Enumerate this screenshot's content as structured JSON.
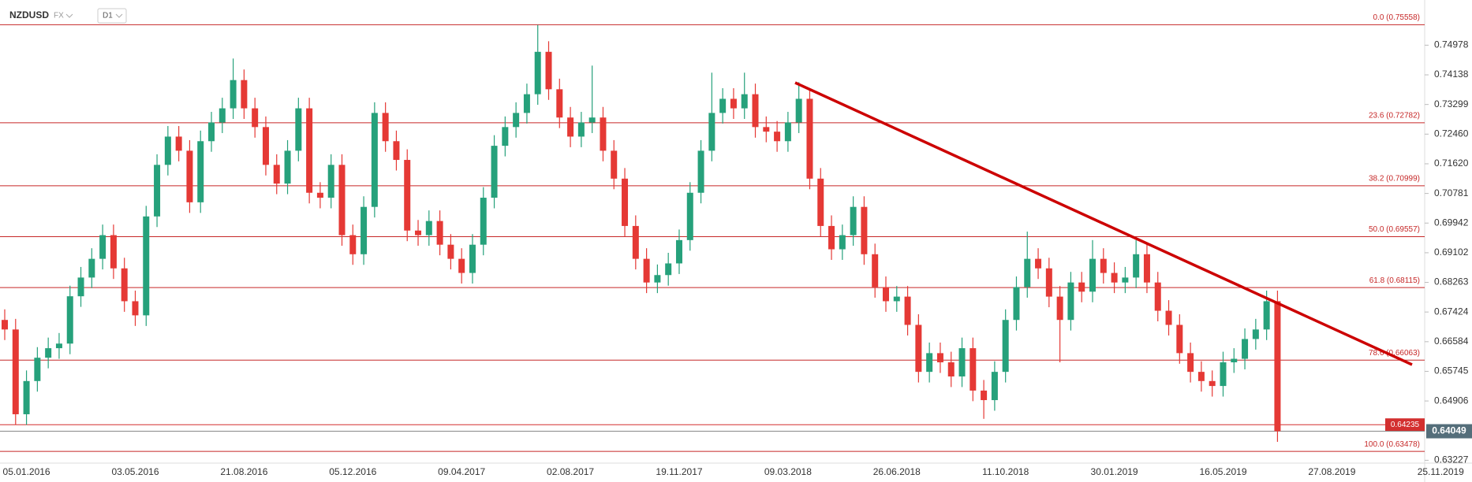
{
  "chart_data": {
    "type": "candlestick",
    "title": "NZDUSD",
    "market": "FX",
    "timeframe": "D1",
    "categories": [
      null,
      null,
      "05.01.2016",
      null,
      null,
      null,
      null,
      null,
      null,
      null,
      null,
      null,
      "03.05.2016",
      null,
      null,
      null,
      null,
      null,
      null,
      null,
      null,
      null,
      "21.08.2016",
      null,
      null,
      null,
      null,
      null,
      null,
      null,
      null,
      null,
      "05.12.2016",
      null,
      null,
      null,
      null,
      null,
      null,
      null,
      null,
      null,
      "09.04.2017",
      null,
      null,
      null,
      null,
      null,
      null,
      null,
      null,
      null,
      "02.08.2017",
      null,
      null,
      null,
      null,
      null,
      null,
      null,
      null,
      null,
      "19.11.2017",
      null,
      null,
      null,
      null,
      null,
      null,
      null,
      null,
      null,
      "09.03.2018",
      null,
      null,
      null,
      null,
      null,
      null,
      null,
      null,
      null,
      "26.06.2018",
      null,
      null,
      null,
      null,
      null,
      null,
      null,
      null,
      null,
      "11.10.2018",
      null,
      null,
      null,
      null,
      null,
      null,
      null,
      null,
      null,
      "30.01.2019",
      null,
      null,
      null,
      null,
      null,
      null,
      null,
      null,
      null,
      "16.05.2019",
      null,
      null,
      null,
      null,
      null,
      null,
      null,
      null,
      null,
      "27.08.2019",
      null,
      null,
      null,
      null,
      null,
      null,
      null,
      null,
      null,
      "25.11.2019"
    ],
    "open": [
      0.672,
      0.6693,
      0.6453,
      0.6547,
      0.6613,
      0.664,
      0.6653,
      0.6787,
      0.684,
      0.6893,
      0.696,
      0.6866,
      0.6773,
      0.6733,
      0.7013,
      0.7159,
      0.7239,
      0.7199,
      0.7053,
      0.7226,
      0.7279,
      0.7319,
      0.7399,
      0.7319,
      0.7266,
      0.7159,
      0.7106,
      0.7199,
      0.7319,
      0.708,
      0.7066,
      0.7159,
      0.696,
      0.6906,
      0.704,
      0.7306,
      0.7226,
      0.7173,
      0.6973,
      0.696,
      0.7,
      0.6933,
      0.6893,
      0.6853,
      0.6933,
      0.7066,
      0.7213,
      0.7266,
      0.7306,
      0.7359,
      0.7479,
      0.7373,
      0.7293,
      0.7239,
      0.7279,
      0.7293,
      0.7199,
      0.712,
      0.6986,
      0.6893,
      0.6826,
      0.6847,
      0.688,
      0.6946,
      0.708,
      0.7199,
      0.7306,
      0.7346,
      0.7319,
      0.7359,
      0.7266,
      0.7253,
      0.7226,
      0.7279,
      0.7346,
      0.712,
      0.6986,
      0.692,
      0.696,
      0.704,
      0.6906,
      0.6813,
      0.6773,
      0.6786,
      0.6706,
      0.6573,
      0.6626,
      0.66,
      0.656,
      0.664,
      0.652,
      0.6493,
      0.6573,
      0.672,
      0.6813,
      0.6893,
      0.6866,
      0.6786,
      0.672,
      0.6826,
      0.68,
      0.6893,
      0.6853,
      0.6826,
      0.684,
      0.6906,
      0.6826,
      0.6746,
      0.6706,
      0.6626,
      0.6573,
      0.6547,
      0.6533,
      0.66,
      0.661,
      0.6666,
      0.6693,
      0.6773,
      null,
      null,
      null,
      null,
      null,
      null,
      null,
      null,
      null,
      null,
      null,
      null,
      null,
      null,
      null
    ],
    "high": [
      0.675,
      0.6723,
      0.6577,
      0.6643,
      0.667,
      0.6683,
      0.6817,
      0.687,
      0.6923,
      0.699,
      0.699,
      0.6896,
      0.6803,
      0.7043,
      0.7189,
      0.7269,
      0.7269,
      0.7229,
      0.7256,
      0.7309,
      0.7349,
      0.746,
      0.7429,
      0.7349,
      0.7296,
      0.7189,
      0.7229,
      0.7349,
      0.7349,
      0.711,
      0.7189,
      0.7189,
      0.699,
      0.707,
      0.7336,
      0.7336,
      0.7256,
      0.7203,
      0.7003,
      0.703,
      0.703,
      0.6963,
      0.6923,
      0.6963,
      0.7096,
      0.7243,
      0.7296,
      0.7336,
      0.7389,
      0.7555,
      0.7509,
      0.7403,
      0.7323,
      0.7309,
      0.744,
      0.7323,
      0.7229,
      0.715,
      0.7016,
      0.6923,
      0.6877,
      0.691,
      0.6976,
      0.711,
      0.7229,
      0.742,
      0.7376,
      0.7376,
      0.742,
      0.7389,
      0.7296,
      0.7283,
      0.7309,
      0.7393,
      0.7376,
      0.715,
      0.7016,
      0.699,
      0.707,
      0.707,
      0.6936,
      0.6843,
      0.6816,
      0.6816,
      0.6736,
      0.6656,
      0.6656,
      0.663,
      0.667,
      0.667,
      0.655,
      0.6603,
      0.675,
      0.6843,
      0.697,
      0.6923,
      0.6896,
      0.6816,
      0.6856,
      0.6856,
      0.6946,
      0.6923,
      0.6883,
      0.687,
      0.6946,
      0.6936,
      0.6856,
      0.6776,
      0.6736,
      0.6656,
      0.6603,
      0.6577,
      0.663,
      0.664,
      0.6696,
      0.6723,
      0.6803,
      0.6803,
      null,
      null,
      null,
      null,
      null,
      null,
      null,
      null,
      null,
      null,
      null,
      null,
      null,
      null,
      null
    ],
    "low": [
      0.6663,
      0.6423,
      0.6423,
      0.6517,
      0.6583,
      0.661,
      0.6623,
      0.6757,
      0.681,
      0.6863,
      0.6836,
      0.6743,
      0.6703,
      0.6703,
      0.6983,
      0.7129,
      0.7169,
      0.7023,
      0.7023,
      0.7196,
      0.7249,
      0.7289,
      0.7289,
      0.7236,
      0.7129,
      0.7076,
      0.7076,
      0.7169,
      0.705,
      0.7036,
      0.7036,
      0.693,
      0.6876,
      0.6876,
      0.701,
      0.7196,
      0.7143,
      0.6943,
      0.693,
      0.693,
      0.6903,
      0.6863,
      0.6823,
      0.6823,
      0.6903,
      0.7036,
      0.7183,
      0.7236,
      0.7276,
      0.7329,
      0.7343,
      0.7263,
      0.7209,
      0.7209,
      0.7249,
      0.7169,
      0.709,
      0.6956,
      0.6863,
      0.6796,
      0.6796,
      0.6817,
      0.685,
      0.6916,
      0.705,
      0.7169,
      0.7276,
      0.7289,
      0.7289,
      0.7236,
      0.7223,
      0.7196,
      0.7196,
      0.7249,
      0.709,
      0.6956,
      0.689,
      0.689,
      0.693,
      0.6876,
      0.6783,
      0.6743,
      0.6743,
      0.6676,
      0.6543,
      0.6543,
      0.657,
      0.653,
      0.653,
      0.649,
      0.644,
      0.6463,
      0.6543,
      0.669,
      0.6783,
      0.6836,
      0.6756,
      0.66,
      0.669,
      0.677,
      0.677,
      0.6823,
      0.6796,
      0.6796,
      0.681,
      0.6796,
      0.6716,
      0.6676,
      0.6596,
      0.6543,
      0.6517,
      0.6503,
      0.6503,
      0.657,
      0.658,
      0.6636,
      0.6663,
      0.6375,
      null,
      null,
      null,
      null,
      null,
      null,
      null,
      null,
      null,
      null,
      null,
      null,
      null,
      null,
      null
    ],
    "close": [
      0.6693,
      0.6453,
      0.6547,
      0.6613,
      0.664,
      0.6653,
      0.6787,
      0.684,
      0.6893,
      0.696,
      0.6866,
      0.6773,
      0.6733,
      0.7013,
      0.7159,
      0.7239,
      0.7199,
      0.7053,
      0.7226,
      0.7279,
      0.7319,
      0.7399,
      0.7319,
      0.7266,
      0.7159,
      0.7106,
      0.7199,
      0.7319,
      0.708,
      0.7066,
      0.7159,
      0.696,
      0.6906,
      0.704,
      0.7306,
      0.7226,
      0.7173,
      0.6973,
      0.696,
      0.7,
      0.6933,
      0.6893,
      0.6853,
      0.6933,
      0.7066,
      0.7213,
      0.7266,
      0.7306,
      0.7359,
      0.7479,
      0.7373,
      0.7293,
      0.7239,
      0.7279,
      0.7293,
      0.7199,
      0.712,
      0.6986,
      0.6893,
      0.6826,
      0.6847,
      0.688,
      0.6946,
      0.708,
      0.7199,
      0.7306,
      0.7346,
      0.7319,
      0.7359,
      0.7266,
      0.7253,
      0.7226,
      0.7279,
      0.7346,
      0.712,
      0.6986,
      0.692,
      0.696,
      0.704,
      0.6906,
      0.6813,
      0.6773,
      0.6786,
      0.6706,
      0.6573,
      0.6626,
      0.66,
      0.656,
      0.664,
      0.652,
      0.6493,
      0.6573,
      0.672,
      0.6813,
      0.6893,
      0.6866,
      0.6786,
      0.672,
      0.6826,
      0.68,
      0.6893,
      0.6853,
      0.6826,
      0.684,
      0.6906,
      0.6826,
      0.6746,
      0.6706,
      0.6626,
      0.6573,
      0.6547,
      0.6533,
      0.66,
      0.661,
      0.6666,
      0.6693,
      0.6773,
      0.6405,
      null,
      null,
      null,
      null,
      null,
      null,
      null,
      null,
      null,
      null,
      null,
      null,
      null,
      null,
      null
    ],
    "up_color": "#26a17b",
    "down_color": "#e53935",
    "ylim": [
      0.63147,
      0.76257
    ],
    "yticks": [
      0.74978,
      0.74138,
      0.73299,
      {
        "value": 0.7246,
        "label": "0.72460"
      },
      {
        "value": 0.7162,
        "label": "0.71620"
      },
      0.70781,
      0.69942,
      0.69102,
      0.68263,
      0.67424,
      0.66584,
      0.65745,
      0.64906,
      0.63227
    ],
    "fib_levels": [
      {
        "value": 0.75558,
        "label": "0.0 (0.75558)"
      },
      {
        "value": 0.72782,
        "label": "23.6 (0.72782)"
      },
      {
        "value": 0.70999,
        "label": "38.2 (0.70999)"
      },
      {
        "value": 0.69557,
        "label": "50.0 (0.69557)"
      },
      {
        "value": 0.68115,
        "label": "61.8 (0.68115)"
      },
      {
        "value": 0.66063,
        "label": "78.6 (0.66063)"
      },
      {
        "value": 0.63478,
        "label": "100.0 (0.63478)"
      }
    ],
    "fib_color": "#c62828",
    "bid_line": 0.64235,
    "last_price": 0.64049
  }
}
